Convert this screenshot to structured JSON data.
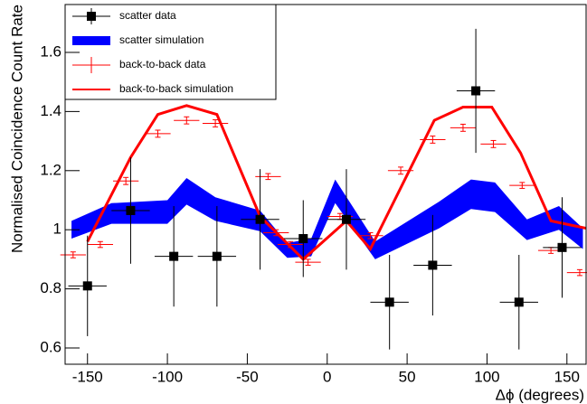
{
  "chart_data": {
    "type": "errorbar",
    "xlabel": "Δϕ (degrees)",
    "ylabel": "Normalised Coincidence Count Rate",
    "xlim": [
      -164,
      162
    ],
    "ylim": [
      0.545,
      1.762
    ],
    "xticks": [
      -150,
      -100,
      -50,
      0,
      50,
      100,
      150
    ],
    "yticks": [
      0.6,
      0.8,
      1,
      1.2,
      1.4,
      1.6
    ],
    "legend": "top-left",
    "series": [
      {
        "name": "scatter data",
        "type": "points",
        "color": "#000000",
        "x": [
          -150,
          -123,
          -96,
          -69,
          -42,
          -15,
          12,
          39,
          66,
          93,
          120,
          147
        ],
        "values": [
          0.81,
          1.065,
          0.91,
          0.91,
          1.035,
          0.97,
          1.035,
          0.755,
          0.88,
          1.47,
          0.755,
          0.94
        ],
        "errors": [
          0.17,
          0.18,
          0.17,
          0.17,
          0.17,
          0.13,
          0.17,
          0.16,
          0.17,
          0.21,
          0.16,
          0.17
        ],
        "xerr": 12
      },
      {
        "name": "scatter simulation",
        "type": "band",
        "color": "#0000ff",
        "x": [
          -160,
          -135,
          -100,
          -88,
          -70,
          -42,
          -25,
          -10,
          5,
          30,
          70,
          90,
          105,
          125,
          145,
          160
        ],
        "values": [
          1.0,
          1.055,
          1.06,
          1.13,
          1.07,
          1.03,
          0.93,
          0.94,
          1.13,
          0.93,
          1.05,
          1.12,
          1.11,
          1.0,
          1.04,
          0.97
        ],
        "errors": [
          0.03,
          0.035,
          0.04,
          0.045,
          0.04,
          0.035,
          0.025,
          0.03,
          0.04,
          0.03,
          0.045,
          0.05,
          0.05,
          0.035,
          0.04,
          0.035
        ]
      },
      {
        "name": "back-to-back data",
        "type": "points",
        "color": "#ff0000",
        "x": [
          -159,
          -142,
          -126,
          -106,
          -88,
          -70,
          -37,
          -32,
          -23,
          -12,
          8,
          27,
          46,
          66,
          85,
          104,
          122,
          140,
          158
        ],
        "values": [
          0.915,
          0.95,
          1.165,
          1.325,
          1.37,
          1.36,
          1.18,
          0.99,
          0.95,
          0.89,
          1.045,
          0.98,
          1.2,
          1.305,
          1.345,
          1.29,
          1.15,
          0.93,
          0.855
        ],
        "errors": [
          0.01,
          0.01,
          0.012,
          0.012,
          0.012,
          0.012,
          0.01,
          0.01,
          0.01,
          0.01,
          0.01,
          0.01,
          0.012,
          0.012,
          0.012,
          0.012,
          0.01,
          0.01,
          0.01
        ],
        "xerr": 8
      },
      {
        "name": "back-to-back simulation",
        "type": "line",
        "color": "#ff0000",
        "x": [
          -150,
          -123,
          -106,
          -88,
          -69,
          -42,
          -15,
          12,
          27,
          67,
          85,
          103,
          121,
          140,
          162
        ],
        "values": [
          0.96,
          1.245,
          1.39,
          1.42,
          1.39,
          1.045,
          0.9,
          1.03,
          0.935,
          1.37,
          1.415,
          1.415,
          1.26,
          1.03,
          1.005
        ]
      }
    ]
  }
}
